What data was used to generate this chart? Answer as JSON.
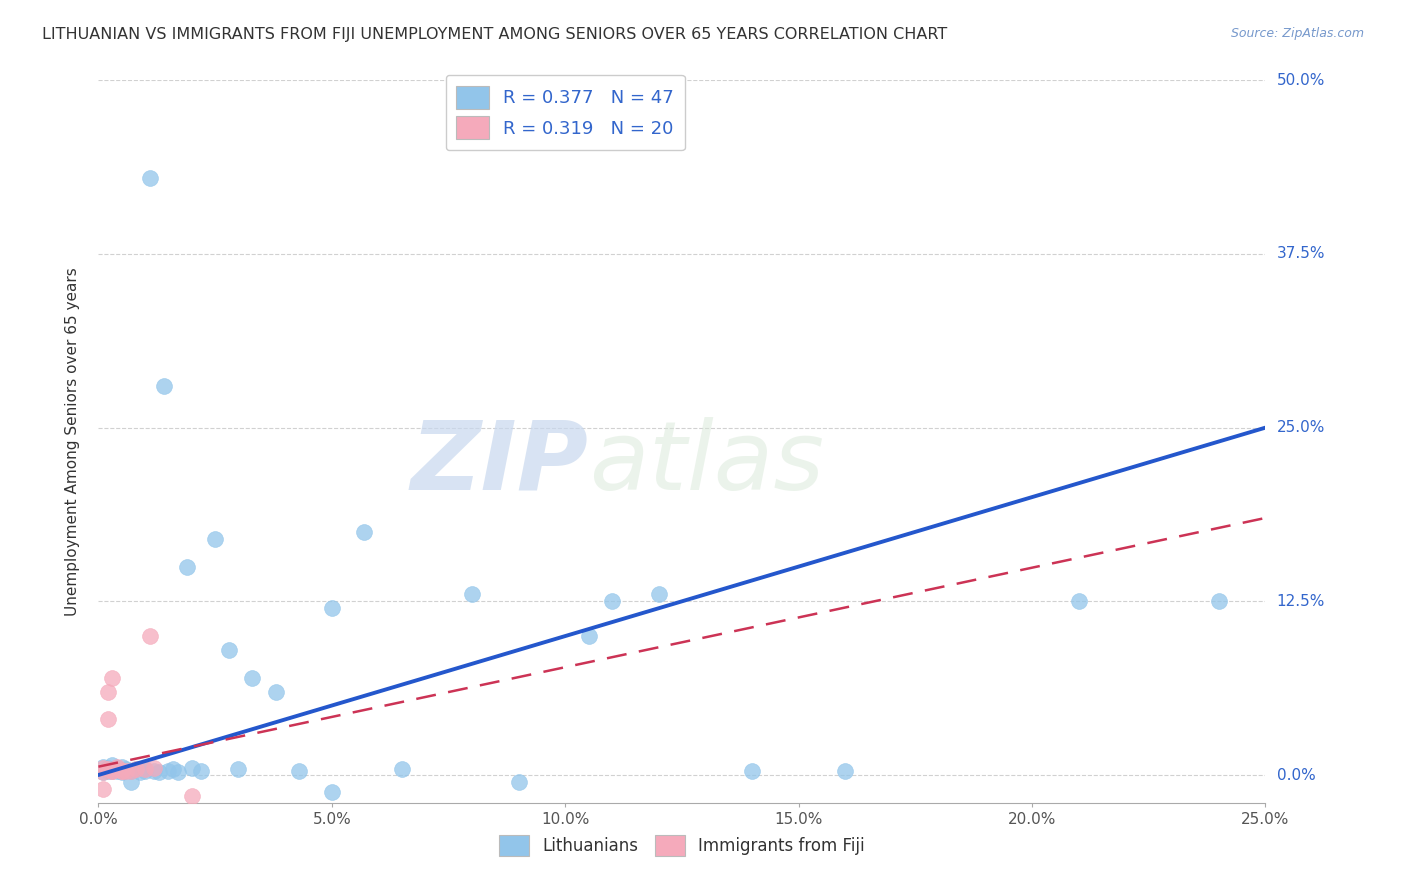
{
  "title": "LITHUANIAN VS IMMIGRANTS FROM FIJI UNEMPLOYMENT AMONG SENIORS OVER 65 YEARS CORRELATION CHART",
  "source": "Source: ZipAtlas.com",
  "ylabel": "Unemployment Among Seniors over 65 years",
  "ylabel_ticks": [
    "0.0%",
    "12.5%",
    "25.0%",
    "37.5%",
    "50.0%"
  ],
  "xlim": [
    0.0,
    0.25
  ],
  "ylim": [
    -0.02,
    0.5
  ],
  "watermark_zip": "ZIP",
  "watermark_atlas": "atlas",
  "legend1_label": "R = 0.377   N = 47",
  "legend2_label": "R = 0.319   N = 20",
  "legend_bottom_label1": "Lithuanians",
  "legend_bottom_label2": "Immigrants from Fiji",
  "blue_color": "#92C5EA",
  "pink_color": "#F5AABB",
  "line_blue": "#2457CC",
  "line_pink": "#CC3355",
  "blue_line_x": [
    0.0,
    0.25
  ],
  "blue_line_y": [
    0.0,
    0.25
  ],
  "pink_line_x": [
    0.0,
    0.25
  ],
  "pink_line_y": [
    0.006,
    0.185
  ],
  "blue_scatter_x": [
    0.001,
    0.001,
    0.002,
    0.002,
    0.003,
    0.003,
    0.003,
    0.004,
    0.004,
    0.005,
    0.005,
    0.006,
    0.007,
    0.007,
    0.008,
    0.009,
    0.01,
    0.01,
    0.011,
    0.012,
    0.013,
    0.014,
    0.015,
    0.016,
    0.017,
    0.019,
    0.02,
    0.022,
    0.025,
    0.028,
    0.03,
    0.033,
    0.038,
    0.043,
    0.05,
    0.057,
    0.065,
    0.08,
    0.09,
    0.105,
    0.12,
    0.14,
    0.16,
    0.21,
    0.24,
    0.05,
    0.11
  ],
  "blue_scatter_y": [
    0.002,
    0.006,
    0.003,
    0.005,
    0.004,
    0.003,
    0.007,
    0.005,
    0.003,
    0.002,
    0.006,
    0.004,
    0.003,
    -0.005,
    0.004,
    0.002,
    0.004,
    0.003,
    0.43,
    0.003,
    0.002,
    0.28,
    0.003,
    0.004,
    0.002,
    0.15,
    0.005,
    0.003,
    0.17,
    0.09,
    0.004,
    0.07,
    0.06,
    0.003,
    0.12,
    0.175,
    0.004,
    0.13,
    -0.005,
    0.1,
    0.13,
    0.003,
    0.003,
    0.125,
    0.125,
    -0.012,
    0.125
  ],
  "pink_scatter_x": [
    0.001,
    0.001,
    0.001,
    0.002,
    0.002,
    0.002,
    0.003,
    0.003,
    0.003,
    0.004,
    0.004,
    0.005,
    0.005,
    0.006,
    0.007,
    0.008,
    0.01,
    0.011,
    0.012,
    0.02
  ],
  "pink_scatter_y": [
    0.005,
    0.002,
    -0.01,
    0.04,
    0.06,
    0.004,
    0.003,
    0.07,
    0.003,
    0.006,
    0.004,
    0.003,
    0.003,
    0.003,
    0.003,
    0.004,
    0.004,
    0.1,
    0.005,
    -0.015
  ]
}
